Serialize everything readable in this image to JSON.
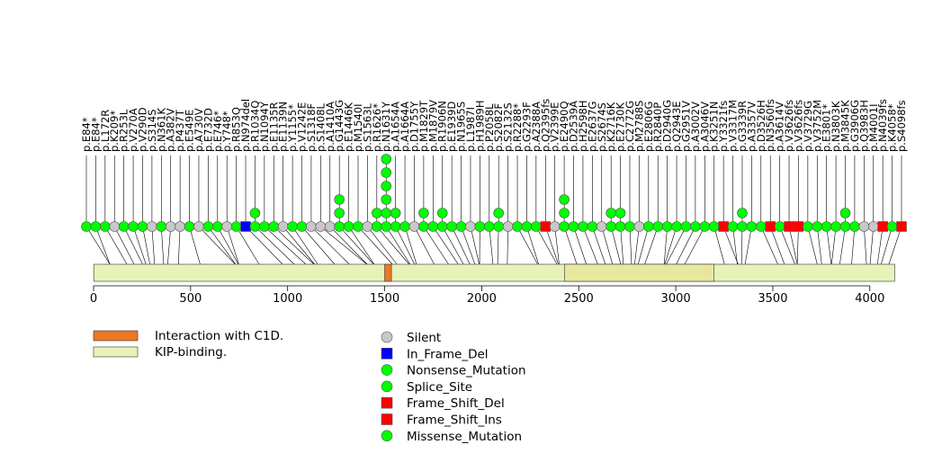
{
  "chart_data": {
    "type": "lollipop",
    "title": "",
    "xlabel": "",
    "ylabel": "",
    "xlim": [
      0,
      4200
    ],
    "x_ticks": [
      0,
      500,
      1000,
      1500,
      2000,
      2500,
      3000,
      3500,
      4000
    ],
    "protein_length": 4128,
    "domains": [
      {
        "name": "Interaction with C1D.",
        "start": 1500,
        "end": 1535,
        "color": "#ee7722"
      },
      {
        "name": "KIP-binding.",
        "start": 1,
        "end": 4128,
        "color": "#e6f3b8"
      },
      {
        "name": "KIP-binding.",
        "start": 2427,
        "end": 3196,
        "color": "#e6e8a0"
      }
    ],
    "legend_domains": [
      {
        "label": "Interaction with C1D.",
        "color": "#ee7722"
      },
      {
        "label": "KIP-binding.",
        "color": "#e6f3b8"
      }
    ],
    "legend_types": [
      {
        "label": "Silent",
        "color": "#c8c8c8",
        "shape": "circle"
      },
      {
        "label": "In_Frame_Del",
        "color": "#0000ff",
        "shape": "square"
      },
      {
        "label": "Nonsense_Mutation",
        "color": "#00ff00",
        "shape": "circle"
      },
      {
        "label": "Splice_Site",
        "color": "#00ff00",
        "shape": "circle"
      },
      {
        "label": "Frame_Shift_Del",
        "color": "#ff0000",
        "shape": "square"
      },
      {
        "label": "Frame_Shift_Ins",
        "color": "#ff0000",
        "shape": "square"
      },
      {
        "label": "Missense_Mutation",
        "color": "#00ff00",
        "shape": "circle"
      }
    ],
    "mutations": [
      {
        "label": "p.E84*",
        "pos": 84,
        "shape": "circle",
        "color": "#00ff00",
        "count": 1
      },
      {
        "label": "p.E84*",
        "pos": 84,
        "shape": "circle",
        "color": "#00ff00",
        "count": 1
      },
      {
        "label": "p.L172R",
        "pos": 172,
        "shape": "circle",
        "color": "#00ff00",
        "count": 1
      },
      {
        "label": "p.K209*",
        "pos": 209,
        "shape": "circle",
        "color": "#c8c8c8",
        "count": 1
      },
      {
        "label": "p.R253L",
        "pos": 253,
        "shape": "circle",
        "color": "#00ff00",
        "count": 1
      },
      {
        "label": "p.V270A",
        "pos": 270,
        "shape": "circle",
        "color": "#00ff00",
        "count": 1
      },
      {
        "label": "p.V290D",
        "pos": 290,
        "shape": "circle",
        "color": "#00ff00",
        "count": 1
      },
      {
        "label": "p.S314S",
        "pos": 314,
        "shape": "circle",
        "color": "#c8c8c8",
        "count": 1
      },
      {
        "label": "p.N361K",
        "pos": 361,
        "shape": "circle",
        "color": "#00ff00",
        "count": 1
      },
      {
        "label": "p.A382V",
        "pos": 382,
        "shape": "circle",
        "color": "#c8c8c8",
        "count": 1
      },
      {
        "label": "p.P437T",
        "pos": 437,
        "shape": "circle",
        "color": "#c8c8c8",
        "count": 1
      },
      {
        "label": "p.E549E",
        "pos": 549,
        "shape": "circle",
        "color": "#00ff00",
        "count": 1
      },
      {
        "label": "p.A730V",
        "pos": 730,
        "shape": "circle",
        "color": "#c8c8c8",
        "count": 1
      },
      {
        "label": "p.E732D",
        "pos": 732,
        "shape": "circle",
        "color": "#00ff00",
        "count": 1
      },
      {
        "label": "p.E746*",
        "pos": 746,
        "shape": "circle",
        "color": "#00ff00",
        "count": 1
      },
      {
        "label": "p.Y748*",
        "pos": 748,
        "shape": "circle",
        "color": "#c8c8c8",
        "count": 1
      },
      {
        "label": "p.R853Q",
        "pos": 853,
        "shape": "circle",
        "color": "#00ff00",
        "count": 1
      },
      {
        "label": "p.N974del",
        "pos": 974,
        "shape": "square",
        "color": "#0000ff",
        "count": 1
      },
      {
        "label": "p.R1034Q",
        "pos": 1034,
        "shape": "circle",
        "color": "#00ff00",
        "count": 2
      },
      {
        "label": "p.N1094Y",
        "pos": 1094,
        "shape": "circle",
        "color": "#00ff00",
        "count": 1
      },
      {
        "label": "p.E1135R",
        "pos": 1135,
        "shape": "circle",
        "color": "#00ff00",
        "count": 1
      },
      {
        "label": "p.E1139N",
        "pos": 1139,
        "shape": "circle",
        "color": "#c8c8c8",
        "count": 1
      },
      {
        "label": "p.Y1155*",
        "pos": 1155,
        "shape": "circle",
        "color": "#00ff00",
        "count": 1
      },
      {
        "label": "p.V1242E",
        "pos": 1242,
        "shape": "circle",
        "color": "#00ff00",
        "count": 1
      },
      {
        "label": "p.S1318F",
        "pos": 1318,
        "shape": "circle",
        "color": "#c8c8c8",
        "count": 1
      },
      {
        "label": "p.S1408L",
        "pos": 1408,
        "shape": "circle",
        "color": "#c8c8c8",
        "count": 1
      },
      {
        "label": "p.A1410A",
        "pos": 1410,
        "shape": "circle",
        "color": "#c8c8c8",
        "count": 1
      },
      {
        "label": "p.G1443G",
        "pos": 1443,
        "shape": "circle",
        "color": "#00ff00",
        "count": 3
      },
      {
        "label": "p.E1446K",
        "pos": 1446,
        "shape": "circle",
        "color": "#00ff00",
        "count": 1
      },
      {
        "label": "p.M1540I",
        "pos": 1540,
        "shape": "circle",
        "color": "#00ff00",
        "count": 1
      },
      {
        "label": "p.S1563L",
        "pos": 1563,
        "shape": "circle",
        "color": "#c8c8c8",
        "count": 1
      },
      {
        "label": "p.R1626*",
        "pos": 1626,
        "shape": "circle",
        "color": "#00ff00",
        "count": 2
      },
      {
        "label": "p.N1631Y",
        "pos": 1631,
        "shape": "circle",
        "color": "#00ff00",
        "count": 6
      },
      {
        "label": "p.A1654A",
        "pos": 1654,
        "shape": "circle",
        "color": "#00ff00",
        "count": 2
      },
      {
        "label": "p.A1664A",
        "pos": 1664,
        "shape": "circle",
        "color": "#00ff00",
        "count": 1
      },
      {
        "label": "p.D1755Y",
        "pos": 1755,
        "shape": "circle",
        "color": "#c8c8c8",
        "count": 1
      },
      {
        "label": "p.M1829T",
        "pos": 1829,
        "shape": "circle",
        "color": "#00ff00",
        "count": 2
      },
      {
        "label": "p.M1879V",
        "pos": 1879,
        "shape": "circle",
        "color": "#00ff00",
        "count": 1
      },
      {
        "label": "p.R1906N",
        "pos": 1906,
        "shape": "circle",
        "color": "#00ff00",
        "count": 2
      },
      {
        "label": "p.E1939D",
        "pos": 1939,
        "shape": "circle",
        "color": "#00ff00",
        "count": 1
      },
      {
        "label": "p.N1965S",
        "pos": 1965,
        "shape": "circle",
        "color": "#00ff00",
        "count": 1
      },
      {
        "label": "p.L1987I",
        "pos": 1987,
        "shape": "circle",
        "color": "#c8c8c8",
        "count": 1
      },
      {
        "label": "p.H1989H",
        "pos": 1989,
        "shape": "circle",
        "color": "#00ff00",
        "count": 1
      },
      {
        "label": "p.P2058L",
        "pos": 2058,
        "shape": "circle",
        "color": "#00ff00",
        "count": 1
      },
      {
        "label": "p.S2082F",
        "pos": 2082,
        "shape": "circle",
        "color": "#00ff00",
        "count": 2
      },
      {
        "label": "p.S2132S",
        "pos": 2132,
        "shape": "circle",
        "color": "#c8c8c8",
        "count": 1
      },
      {
        "label": "p.R2288*",
        "pos": 2288,
        "shape": "circle",
        "color": "#00ff00",
        "count": 1
      },
      {
        "label": "p.G2293F",
        "pos": 2293,
        "shape": "circle",
        "color": "#00ff00",
        "count": 1
      },
      {
        "label": "p.A2388A",
        "pos": 2388,
        "shape": "circle",
        "color": "#00ff00",
        "count": 1
      },
      {
        "label": "p.Q2395fs",
        "pos": 2395,
        "shape": "square",
        "color": "#ff0000",
        "count": 1
      },
      {
        "label": "p.V2399E",
        "pos": 2399,
        "shape": "circle",
        "color": "#c8c8c8",
        "count": 1
      },
      {
        "label": "p.E2490Q",
        "pos": 2490,
        "shape": "circle",
        "color": "#00ff00",
        "count": 3
      },
      {
        "label": "p.D2539A",
        "pos": 2539,
        "shape": "circle",
        "color": "#00ff00",
        "count": 1
      },
      {
        "label": "p.H2598H",
        "pos": 2598,
        "shape": "circle",
        "color": "#00ff00",
        "count": 1
      },
      {
        "label": "p.E2637G",
        "pos": 2637,
        "shape": "circle",
        "color": "#00ff00",
        "count": 1
      },
      {
        "label": "p.S2674S",
        "pos": 2674,
        "shape": "circle",
        "color": "#c8c8c8",
        "count": 1
      },
      {
        "label": "p.K2716K",
        "pos": 2716,
        "shape": "circle",
        "color": "#00ff00",
        "count": 2
      },
      {
        "label": "p.E2730K",
        "pos": 2730,
        "shape": "circle",
        "color": "#00ff00",
        "count": 2
      },
      {
        "label": "p.C2772G",
        "pos": 2772,
        "shape": "circle",
        "color": "#00ff00",
        "count": 1
      },
      {
        "label": "p.M2788S",
        "pos": 2788,
        "shape": "circle",
        "color": "#c8c8c8",
        "count": 1
      },
      {
        "label": "p.E2806G",
        "pos": 2806,
        "shape": "circle",
        "color": "#00ff00",
        "count": 1
      },
      {
        "label": "p.R2840P",
        "pos": 2840,
        "shape": "circle",
        "color": "#00ff00",
        "count": 1
      },
      {
        "label": "p.D2940G",
        "pos": 2940,
        "shape": "circle",
        "color": "#00ff00",
        "count": 1
      },
      {
        "label": "p.Q2943E",
        "pos": 2943,
        "shape": "circle",
        "color": "#00ff00",
        "count": 1
      },
      {
        "label": "p.G2951V",
        "pos": 2951,
        "shape": "circle",
        "color": "#00ff00",
        "count": 1
      },
      {
        "label": "p.A3002V",
        "pos": 3002,
        "shape": "circle",
        "color": "#00ff00",
        "count": 1
      },
      {
        "label": "p.A3046V",
        "pos": 3046,
        "shape": "circle",
        "color": "#00ff00",
        "count": 1
      },
      {
        "label": "p.K3251N",
        "pos": 3251,
        "shape": "circle",
        "color": "#00ff00",
        "count": 1
      },
      {
        "label": "p.Y3321fs",
        "pos": 3321,
        "shape": "square",
        "color": "#ff0000",
        "count": 1
      },
      {
        "label": "p.V3317M",
        "pos": 3317,
        "shape": "circle",
        "color": "#00ff00",
        "count": 1
      },
      {
        "label": "p.G3339R",
        "pos": 3339,
        "shape": "circle",
        "color": "#00ff00",
        "count": 2
      },
      {
        "label": "p.A3357V",
        "pos": 3357,
        "shape": "circle",
        "color": "#00ff00",
        "count": 1
      },
      {
        "label": "p.D3526H",
        "pos": 3526,
        "shape": "circle",
        "color": "#00ff00",
        "count": 1
      },
      {
        "label": "p.N3560fs",
        "pos": 3560,
        "shape": "square",
        "color": "#ff0000",
        "count": 1
      },
      {
        "label": "p.A3614V",
        "pos": 3614,
        "shape": "circle",
        "color": "#00ff00",
        "count": 1
      },
      {
        "label": "p.V3626fs",
        "pos": 3626,
        "shape": "square",
        "color": "#ff0000",
        "count": 1
      },
      {
        "label": "p.V3626fs",
        "pos": 3626,
        "shape": "square",
        "color": "#ff0000",
        "count": 1
      },
      {
        "label": "p.V3729G",
        "pos": 3729,
        "shape": "circle",
        "color": "#00ff00",
        "count": 1
      },
      {
        "label": "p.V3752M",
        "pos": 3752,
        "shape": "circle",
        "color": "#00ff00",
        "count": 1
      },
      {
        "label": "p.E3801*",
        "pos": 3801,
        "shape": "circle",
        "color": "#00ff00",
        "count": 1
      },
      {
        "label": "p.N3803K",
        "pos": 3803,
        "shape": "circle",
        "color": "#00ff00",
        "count": 1
      },
      {
        "label": "p.M3845K",
        "pos": 3845,
        "shape": "circle",
        "color": "#00ff00",
        "count": 2
      },
      {
        "label": "p.G3906G",
        "pos": 3906,
        "shape": "circle",
        "color": "#00ff00",
        "count": 1
      },
      {
        "label": "p.Q3983H",
        "pos": 3983,
        "shape": "circle",
        "color": "#c8c8c8",
        "count": 1
      },
      {
        "label": "p.M4001I",
        "pos": 4001,
        "shape": "circle",
        "color": "#c8c8c8",
        "count": 1
      },
      {
        "label": "p.N4039fs",
        "pos": 4039,
        "shape": "square",
        "color": "#ff0000",
        "count": 1
      },
      {
        "label": "p.K4058*",
        "pos": 4058,
        "shape": "circle",
        "color": "#00ff00",
        "count": 1
      },
      {
        "label": "p.S4098fs",
        "pos": 4098,
        "shape": "square",
        "color": "#ff0000",
        "count": 1
      }
    ]
  }
}
